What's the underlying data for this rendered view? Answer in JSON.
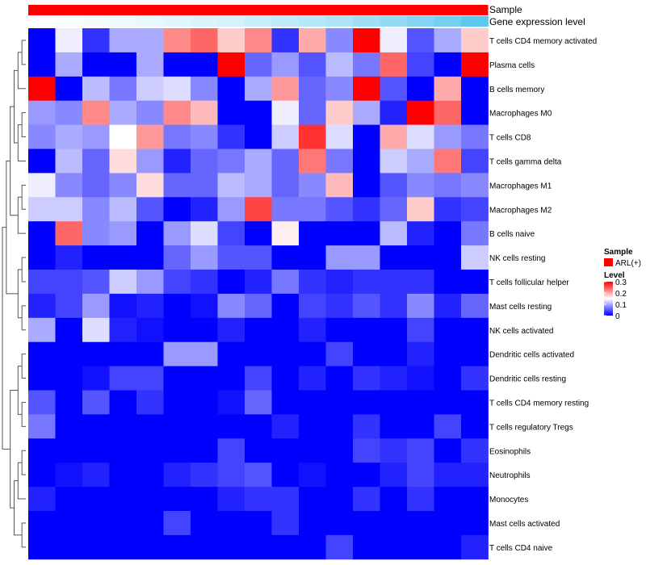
{
  "chart_data": {
    "type": "heatmap",
    "annotation_tracks": [
      "Sample",
      "Gene expression level"
    ],
    "sample_track_value": "ARL(+)",
    "gene_expression_levels": [
      0.0,
      0.03,
      0.06,
      0.1,
      0.14,
      0.18,
      0.22,
      0.26,
      0.32,
      0.38,
      0.44,
      0.5,
      0.58,
      0.66,
      0.76,
      0.86,
      1.0
    ],
    "rows": [
      "T cells CD4 memory activated",
      "Plasma cells",
      "B cells memory",
      "Macrophages M0",
      "T cells CD8",
      "T cells gamma delta",
      "Macrophages M1",
      "Macrophages M2",
      "B cells naive",
      "NK cells resting",
      "T cells follicular helper",
      "Mast cells resting",
      "NK cells activated",
      "Dendritic cells activated",
      "Dendritic cells resting",
      "T cells CD4 memory resting",
      "T cells regulatory  Tregs",
      "Eosinophils",
      "Neutrophils",
      "Monocytes",
      "Mast cells activated",
      "T cells CD4 naive"
    ],
    "values": [
      [
        0.0,
        0.14,
        0.03,
        0.1,
        0.1,
        0.22,
        0.24,
        0.18,
        0.22,
        0.03,
        0.2,
        0.08,
        0.3,
        0.14,
        0.05,
        0.1,
        0.18
      ],
      [
        0.0,
        0.1,
        0.0,
        0.0,
        0.1,
        0.0,
        0.0,
        0.3,
        0.06,
        0.09,
        0.05,
        0.11,
        0.07,
        0.24,
        0.04,
        0.0,
        0.3
      ],
      [
        0.3,
        0.0,
        0.11,
        0.07,
        0.12,
        0.13,
        0.08,
        0.0,
        0.1,
        0.21,
        0.06,
        0.08,
        0.3,
        0.05,
        0.0,
        0.2,
        0.0
      ],
      [
        0.09,
        0.08,
        0.22,
        0.1,
        0.08,
        0.22,
        0.19,
        0.0,
        0.0,
        0.14,
        0.06,
        0.18,
        0.1,
        0.02,
        0.3,
        0.24,
        0.0
      ],
      [
        0.08,
        0.1,
        0.09,
        0.15,
        0.21,
        0.07,
        0.08,
        0.03,
        0.0,
        0.12,
        0.27,
        0.13,
        0.0,
        0.2,
        0.13,
        0.09,
        0.07
      ],
      [
        0.0,
        0.11,
        0.06,
        0.17,
        0.09,
        0.02,
        0.06,
        0.07,
        0.1,
        0.06,
        0.23,
        0.07,
        0.0,
        0.12,
        0.1,
        0.23,
        0.04
      ],
      [
        0.14,
        0.08,
        0.06,
        0.08,
        0.17,
        0.06,
        0.06,
        0.11,
        0.1,
        0.06,
        0.08,
        0.19,
        0.0,
        0.05,
        0.08,
        0.07,
        0.08
      ],
      [
        0.12,
        0.12,
        0.08,
        0.11,
        0.05,
        0.0,
        0.02,
        0.09,
        0.26,
        0.07,
        0.07,
        0.05,
        0.03,
        0.06,
        0.18,
        0.03,
        0.04
      ],
      [
        0.0,
        0.24,
        0.08,
        0.09,
        0.0,
        0.09,
        0.13,
        0.04,
        0.0,
        0.16,
        0.0,
        0.0,
        0.0,
        0.11,
        0.02,
        0.0,
        0.07
      ],
      [
        0.0,
        0.02,
        0.0,
        0.0,
        0.0,
        0.06,
        0.09,
        0.05,
        0.05,
        0.0,
        0.0,
        0.09,
        0.09,
        0.0,
        0.0,
        0.0,
        0.12
      ],
      [
        0.04,
        0.04,
        0.05,
        0.12,
        0.09,
        0.04,
        0.03,
        0.0,
        0.02,
        0.07,
        0.03,
        0.02,
        0.03,
        0.03,
        0.03,
        0.0,
        0.0
      ],
      [
        0.02,
        0.04,
        0.09,
        0.01,
        0.02,
        0.0,
        0.01,
        0.08,
        0.06,
        0.0,
        0.04,
        0.03,
        0.05,
        0.03,
        0.08,
        0.02,
        0.06
      ],
      [
        0.1,
        0.0,
        0.13,
        0.02,
        0.01,
        0.0,
        0.0,
        0.02,
        0.0,
        0.0,
        0.02,
        0.0,
        0.0,
        0.0,
        0.04,
        0.0,
        0.0
      ],
      [
        0.0,
        0.0,
        0.0,
        0.0,
        0.0,
        0.09,
        0.09,
        0.0,
        0.0,
        0.0,
        0.0,
        0.04,
        0.0,
        0.0,
        0.02,
        0.0,
        0.0
      ],
      [
        0.0,
        0.0,
        0.01,
        0.04,
        0.04,
        0.0,
        0.0,
        0.0,
        0.04,
        0.0,
        0.02,
        0.0,
        0.03,
        0.02,
        0.01,
        0.0,
        0.03
      ],
      [
        0.05,
        0.0,
        0.05,
        0.0,
        0.03,
        0.0,
        0.0,
        0.01,
        0.06,
        0.0,
        0.0,
        0.0,
        0.0,
        0.0,
        0.0,
        0.0,
        0.0
      ],
      [
        0.07,
        0.0,
        0.0,
        0.0,
        0.0,
        0.0,
        0.0,
        0.0,
        0.0,
        0.02,
        0.0,
        0.0,
        0.03,
        0.0,
        0.0,
        0.04,
        0.0
      ],
      [
        0.0,
        0.0,
        0.0,
        0.0,
        0.0,
        0.0,
        0.0,
        0.04,
        0.0,
        0.0,
        0.0,
        0.0,
        0.04,
        0.03,
        0.04,
        0.0,
        0.03
      ],
      [
        0.0,
        0.01,
        0.02,
        0.0,
        0.0,
        0.02,
        0.03,
        0.04,
        0.05,
        0.0,
        0.01,
        0.0,
        0.0,
        0.02,
        0.04,
        0.02,
        0.02
      ],
      [
        0.02,
        0.0,
        0.0,
        0.0,
        0.0,
        0.0,
        0.0,
        0.02,
        0.03,
        0.03,
        0.0,
        0.0,
        0.03,
        0.0,
        0.03,
        0.0,
        0.0
      ],
      [
        0.0,
        0.0,
        0.0,
        0.0,
        0.0,
        0.04,
        0.0,
        0.0,
        0.0,
        0.03,
        0.0,
        0.0,
        0.0,
        0.0,
        0.0,
        0.0,
        0.0
      ],
      [
        0.0,
        0.0,
        0.0,
        0.0,
        0.0,
        0.0,
        0.0,
        0.0,
        0.0,
        0.0,
        0.0,
        0.04,
        0.0,
        0.0,
        0.0,
        0.0,
        0.02
      ]
    ],
    "color_scale": {
      "min": 0,
      "max": 0.3,
      "low": "#0000ff",
      "mid": "#ffffff",
      "high": "#ff0000",
      "mid_value": 0.15
    },
    "legend": {
      "sample_title": "Sample",
      "sample_entry": "ARL(+)",
      "sample_color": "#ff0000",
      "level_title": "Level",
      "level_ticks": [
        "0.3",
        "0.2",
        "0.1",
        "0"
      ],
      "level_tick_values": [
        0.3,
        0.2,
        0.1,
        0
      ]
    },
    "annotation_colors": {
      "sample": "#ff0000",
      "gene_low": "#ffffff",
      "gene_high": "#5cc8ee"
    },
    "dendrogram": {
      "tree": [
        [
          [
            [
              [
                [
                  0,
                  1
                ],
                2
              ],
              [
                [
                  3,
                  4
                ],
                5
              ]
            ],
            [
              [
                6,
                7
              ],
              8
            ]
          ],
          [
            [
              9,
              10
            ],
            [
              11,
              12
            ]
          ]
        ],
        [
          [
            [
              13,
              14
            ],
            [
              15,
              16
            ]
          ],
          [
            [
              [
                17,
                18
              ],
              19
            ],
            [
              20,
              21
            ]
          ]
        ]
      ]
    }
  }
}
